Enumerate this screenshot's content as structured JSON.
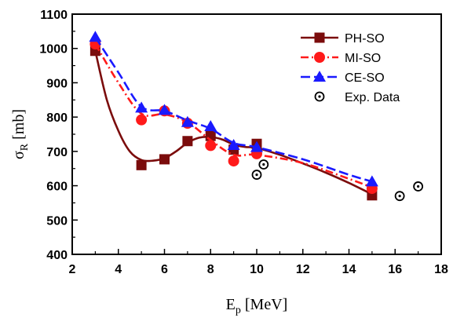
{
  "chart_data": {
    "type": "line",
    "title": "",
    "xlabel": {
      "main": "E",
      "sub": "p",
      "unit": " [MeV]"
    },
    "ylabel": {
      "main": "σ",
      "sub": "R",
      "unit": " [mb]"
    },
    "xlim": [
      2,
      18
    ],
    "ylim": [
      400,
      1100
    ],
    "xticks": [
      2,
      4,
      6,
      8,
      10,
      12,
      14,
      16,
      18
    ],
    "yticks": [
      400,
      500,
      600,
      700,
      800,
      900,
      1000,
      1100
    ],
    "grid": false,
    "legend_position": "top-right",
    "series": [
      {
        "name": "PH-SO",
        "color": "#7b0c0c",
        "marker": "square",
        "dash": "solid",
        "points": [
          [
            3,
            993
          ],
          [
            5,
            660
          ],
          [
            6,
            677
          ],
          [
            7,
            730
          ],
          [
            8,
            745
          ],
          [
            9,
            705
          ],
          [
            10,
            722
          ],
          [
            15,
            572
          ]
        ],
        "curve": [
          [
            3,
            993
          ],
          [
            3.5,
            850
          ],
          [
            4,
            760
          ],
          [
            4.5,
            700
          ],
          [
            5,
            675
          ],
          [
            5.5,
            673
          ],
          [
            6,
            680
          ],
          [
            6.5,
            700
          ],
          [
            7,
            725
          ],
          [
            7.5,
            740
          ],
          [
            8,
            742
          ],
          [
            8.5,
            735
          ],
          [
            9,
            720
          ],
          [
            9.5,
            713
          ],
          [
            10,
            710
          ],
          [
            11,
            690
          ],
          [
            12,
            665
          ],
          [
            13,
            638
          ],
          [
            14,
            608
          ],
          [
            15,
            575
          ]
        ]
      },
      {
        "name": "MI-SO",
        "color": "#ff1a1a",
        "marker": "circle",
        "dash": "dashdot",
        "points": [
          [
            3,
            1013
          ],
          [
            5,
            792
          ],
          [
            6,
            818
          ],
          [
            7,
            782
          ],
          [
            8,
            717
          ],
          [
            9,
            672
          ],
          [
            10,
            693
          ],
          [
            15,
            592
          ]
        ],
        "curve": [
          [
            3,
            1013
          ],
          [
            4,
            900
          ],
          [
            5,
            810
          ],
          [
            6,
            808
          ],
          [
            7,
            785
          ],
          [
            8,
            733
          ],
          [
            9,
            690
          ],
          [
            10,
            690
          ],
          [
            12,
            666
          ],
          [
            14,
            620
          ],
          [
            15,
            595
          ]
        ]
      },
      {
        "name": "CE-SO",
        "color": "#1a1aff",
        "marker": "triangle",
        "dash": "dashed",
        "points": [
          [
            3,
            1033
          ],
          [
            5,
            827
          ],
          [
            6,
            820
          ],
          [
            7,
            785
          ],
          [
            8,
            773
          ],
          [
            9,
            718
          ],
          [
            10,
            712
          ],
          [
            15,
            612
          ]
        ],
        "curve": [
          [
            3,
            1033
          ],
          [
            4,
            930
          ],
          [
            5,
            830
          ],
          [
            6,
            818
          ],
          [
            7,
            790
          ],
          [
            8,
            766
          ],
          [
            9,
            725
          ],
          [
            10,
            712
          ],
          [
            12,
            677
          ],
          [
            14,
            632
          ],
          [
            15,
            612
          ]
        ]
      },
      {
        "name": "Exp. Data",
        "color": "#000000",
        "marker": "circle-dot",
        "dash": "none",
        "points": [
          [
            10,
            632
          ],
          [
            10.3,
            662
          ],
          [
            16.2,
            570
          ],
          [
            17,
            598
          ]
        ],
        "errors": [
          0,
          0,
          12,
          0
        ]
      }
    ]
  }
}
